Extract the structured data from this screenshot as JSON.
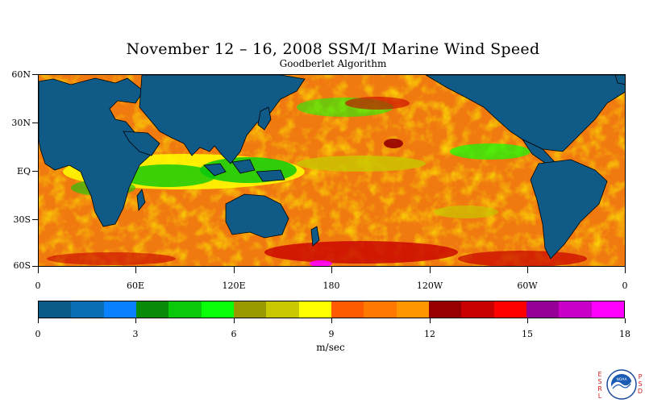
{
  "title": "November 12 – 16, 2008 SSM/I Marine Wind Speed",
  "subtitle": "Goodberlet Algorithm",
  "lat_labels": [
    "60N",
    "30N",
    "EQ",
    "30S",
    "60S"
  ],
  "lon_labels": [
    "0",
    "60E",
    "120E",
    "180",
    "120W",
    "60W",
    "0"
  ],
  "colorbar": {
    "colors": [
      "#0a5a87",
      "#0a6eb4",
      "#0a82ff",
      "#0a8c0a",
      "#0ac80a",
      "#0aff0a",
      "#9a9a00",
      "#c8c800",
      "#ffff00",
      "#ff5a00",
      "#ff7800",
      "#ff9600",
      "#960000",
      "#c80000",
      "#ff0000",
      "#960096",
      "#c800c8",
      "#ff00ff"
    ],
    "tick_labels": [
      "0",
      "3",
      "6",
      "9",
      "12",
      "15",
      "18"
    ],
    "units": "m/sec"
  },
  "map_colors": {
    "land": "#0f5a87",
    "ocean_base": "#f07a10"
  },
  "logo": {
    "left_letters": [
      "E",
      "S",
      "R",
      "L"
    ],
    "right_letters": [
      "P",
      "S",
      "D"
    ],
    "emblem_text": "NOAA"
  }
}
